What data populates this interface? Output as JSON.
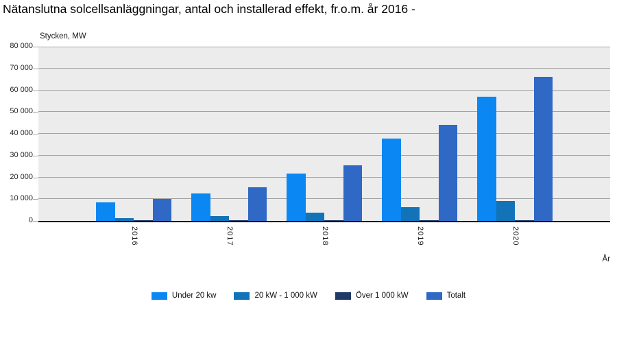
{
  "title": "Nätanslutna solcellsanläggningar, antal och installerad effekt, fr.o.m. år 2016 -",
  "chart_data": {
    "type": "bar",
    "title": "Nätanslutna solcellsanläggningar, antal och installerad effekt, fr.o.m. år 2016 -",
    "unit_label": "Stycken, MW",
    "x_axis_label": "År",
    "categories": [
      "2016",
      "2017",
      "2018",
      "2019",
      "2020"
    ],
    "series": [
      {
        "name": "Under 20 kw",
        "color": "#0A87F2",
        "values": [
          8500,
          12700,
          21600,
          37700,
          56900
        ]
      },
      {
        "name": "20 kW - 1 000 kW",
        "color": "#1273B8",
        "values": [
          1300,
          2200,
          3700,
          6200,
          9100
        ]
      },
      {
        "name": "Över 1 000 kW",
        "color": "#1F3A66",
        "values": [
          100,
          100,
          100,
          100,
          100
        ]
      },
      {
        "name": "Totalt",
        "color": "#2F68C5",
        "values": [
          10100,
          15300,
          25500,
          44100,
          66100
        ]
      }
    ],
    "ylim": [
      0,
      80000
    ],
    "y_tick_step": 10000,
    "y_ticks": [
      "0",
      "10 000",
      "20 000",
      "30 000",
      "40 000",
      "50 000",
      "60 000",
      "70 000",
      "80 000"
    ],
    "grid": true,
    "legend_position": "bottom",
    "plot_background": "#ECECEC",
    "gridline_color": "#A2A2A2",
    "axis_line_color": "#111111"
  }
}
